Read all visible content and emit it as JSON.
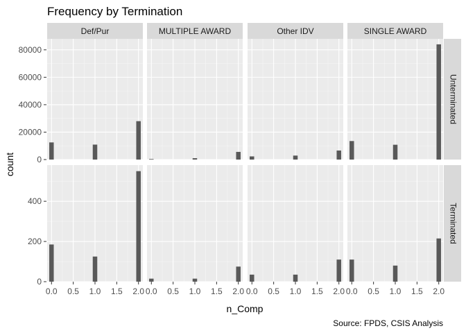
{
  "chart_data": {
    "type": "bar",
    "title": "Frequency by Termination",
    "xlabel": "n_Comp",
    "ylabel": "count",
    "caption": "Source: FPDS, CSIS Analysis",
    "x_ticks": [
      "0.0",
      "0.5",
      "1.0",
      "1.5",
      "2.0"
    ],
    "x_values": [
      0,
      1,
      2
    ],
    "xlim": [
      -0.1,
      2.1
    ],
    "columns": [
      "Def/Pur",
      "MULTIPLE AWARD",
      "Other IDV",
      "SINGLE AWARD"
    ],
    "rows": [
      {
        "label": "Unterminated",
        "ylim": [
          0,
          88000
        ],
        "y_ticks": [
          0,
          20000,
          40000,
          60000,
          80000
        ],
        "y_tick_labels": [
          "0",
          "20000",
          "40000",
          "60000",
          "80000"
        ],
        "panels": [
          {
            "column": "Def/Pur",
            "values": [
              12500,
              10900,
              28000
            ]
          },
          {
            "column": "MULTIPLE AWARD",
            "values": [
              400,
              1000,
              5600
            ]
          },
          {
            "column": "Other IDV",
            "values": [
              2300,
              2900,
              6600
            ]
          },
          {
            "column": "SINGLE AWARD",
            "values": [
              13500,
              10800,
              84000
            ]
          }
        ]
      },
      {
        "label": "Terminated",
        "ylim": [
          0,
          580
        ],
        "y_ticks": [
          0,
          200,
          400
        ],
        "y_tick_labels": [
          "0",
          "200",
          "400"
        ],
        "panels": [
          {
            "column": "Def/Pur",
            "values": [
              185,
              125,
              550
            ]
          },
          {
            "column": "MULTIPLE AWARD",
            "values": [
              15,
              15,
              75
            ]
          },
          {
            "column": "Other IDV",
            "values": [
              35,
              35,
              110
            ]
          },
          {
            "column": "SINGLE AWARD",
            "values": [
              110,
              80,
              215
            ]
          }
        ]
      }
    ],
    "colors": {
      "bar": "#595959",
      "panel_bg": "#ebebeb",
      "strip_bg": "#d9d9d9",
      "grid_major": "#ffffff"
    },
    "grid": true,
    "legend": "none"
  }
}
